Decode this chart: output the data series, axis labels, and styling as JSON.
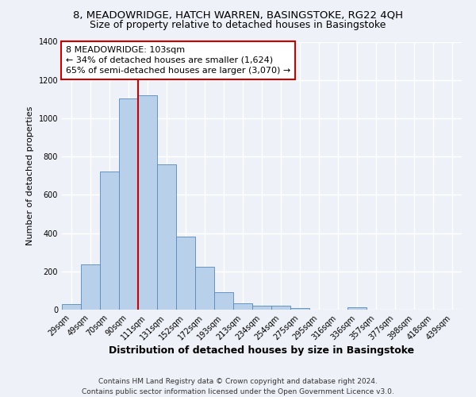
{
  "title": "8, MEADOWRIDGE, HATCH WARREN, BASINGSTOKE, RG22 4QH",
  "subtitle": "Size of property relative to detached houses in Basingstoke",
  "xlabel": "Distribution of detached houses by size in Basingstoke",
  "ylabel": "Number of detached properties",
  "bar_labels": [
    "29sqm",
    "49sqm",
    "70sqm",
    "90sqm",
    "111sqm",
    "131sqm",
    "152sqm",
    "172sqm",
    "193sqm",
    "213sqm",
    "234sqm",
    "254sqm",
    "275sqm",
    "295sqm",
    "316sqm",
    "336sqm",
    "357sqm",
    "377sqm",
    "398sqm",
    "418sqm",
    "439sqm"
  ],
  "bar_values": [
    30,
    238,
    720,
    1105,
    1120,
    760,
    380,
    225,
    90,
    32,
    22,
    20,
    10,
    0,
    0,
    12,
    0,
    0,
    0,
    0,
    0
  ],
  "bar_color": "#b8d0ea",
  "bar_edge_color": "#5588bb",
  "ylim": [
    0,
    1400
  ],
  "yticks": [
    0,
    200,
    400,
    600,
    800,
    1000,
    1200,
    1400
  ],
  "vline_x": 3.5,
  "vline_color": "#cc0000",
  "annotation_title": "8 MEADOWRIDGE: 103sqm",
  "annotation_line1": "← 34% of detached houses are smaller (1,624)",
  "annotation_line2": "65% of semi-detached houses are larger (3,070) →",
  "annotation_box_color": "#ffffff",
  "annotation_box_edge": "#cc0000",
  "footer_line1": "Contains HM Land Registry data © Crown copyright and database right 2024.",
  "footer_line2": "Contains public sector information licensed under the Open Government Licence v3.0.",
  "background_color": "#eef2f8",
  "grid_color": "#ffffff",
  "title_fontsize": 9.5,
  "subtitle_fontsize": 9,
  "xlabel_fontsize": 9,
  "ylabel_fontsize": 8,
  "tick_fontsize": 7,
  "annotation_fontsize": 8,
  "footer_fontsize": 6.5
}
